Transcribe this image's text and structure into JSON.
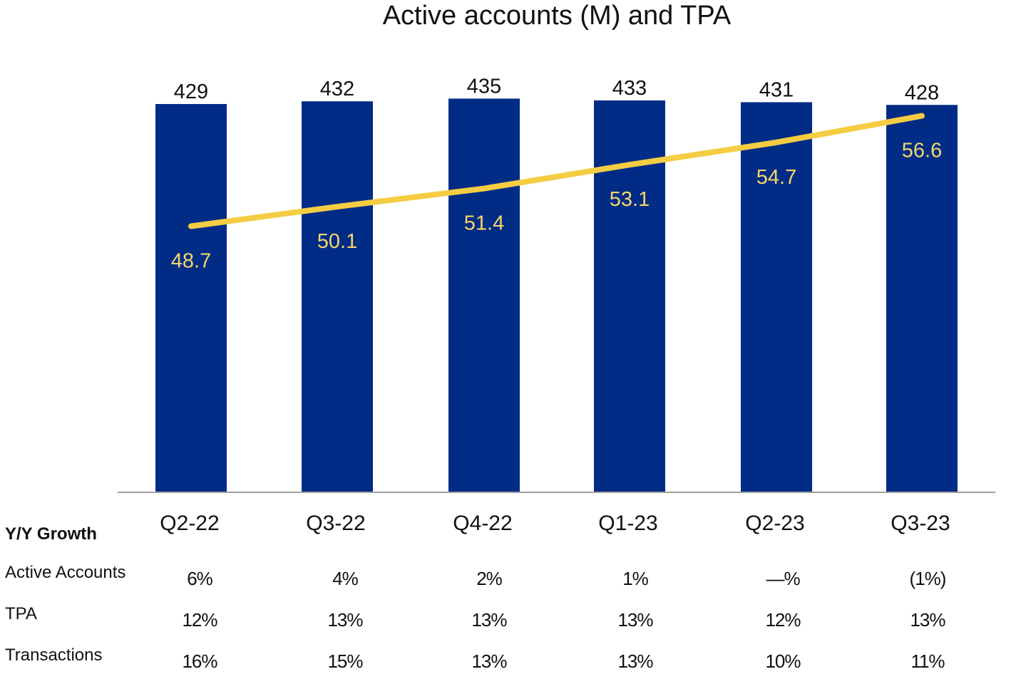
{
  "chart_data": {
    "type": "bar",
    "title": "Active accounts (M) and TPA",
    "categories": [
      "Q2-22",
      "Q3-22",
      "Q4-22",
      "Q1-23",
      "Q2-23",
      "Q3-23"
    ],
    "series": [
      {
        "type": "bar",
        "values": [
          429,
          432,
          435,
          433,
          431,
          428
        ],
        "color": "#012c86",
        "label_color": "#111111"
      },
      {
        "type": "line",
        "axis": "secondary",
        "values": [
          48.7,
          50.1,
          51.4,
          53.1,
          54.7,
          56.6
        ],
        "color": "#f5cd43",
        "label_color": "#f5d66a"
      }
    ],
    "ylim": [
      0,
      470
    ],
    "y2lim": [
      29.7,
      60.1
    ],
    "grid": false,
    "axes_visible": false
  },
  "table": {
    "header": "Y/Y Growth",
    "rows": [
      {
        "label": "Active Accounts",
        "values": [
          "6%",
          "4%",
          "2%",
          "1%",
          "—%",
          "(1%)"
        ]
      },
      {
        "label": "TPA",
        "values": [
          "12%",
          "13%",
          "13%",
          "13%",
          "12%",
          "13%"
        ]
      },
      {
        "label": "Transactions",
        "values": [
          "16%",
          "15%",
          "13%",
          "13%",
          "10%",
          "11%"
        ]
      }
    ]
  }
}
